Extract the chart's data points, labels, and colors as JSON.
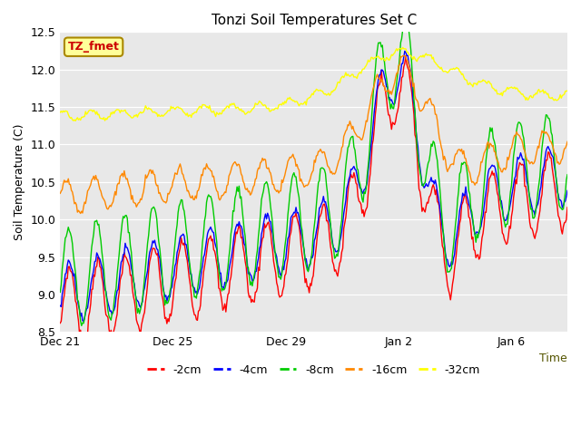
{
  "title": "Tonzi Soil Temperatures Set C",
  "ylabel": "Soil Temperature (C)",
  "xlabel": "Time",
  "ylim": [
    8.5,
    12.5
  ],
  "annotation_text": "TZ_fmet",
  "annotation_bg": "#ffff99",
  "annotation_border": "#aa8800",
  "x_ticks_labels": [
    "Dec 21",
    "Dec 25",
    "Dec 29",
    "Jan 2",
    "Jan 6"
  ],
  "x_ticks_positions": [
    0,
    4,
    8,
    12,
    16
  ],
  "legend": [
    {
      "label": "-2cm",
      "color": "#ff0000"
    },
    {
      "label": "-4cm",
      "color": "#0000ff"
    },
    {
      "label": "-8cm",
      "color": "#00cc00"
    },
    {
      "label": "-16cm",
      "color": "#ff8800"
    },
    {
      "label": "-32cm",
      "color": "#ffff00"
    }
  ],
  "total_days": 18,
  "n_points": 500
}
